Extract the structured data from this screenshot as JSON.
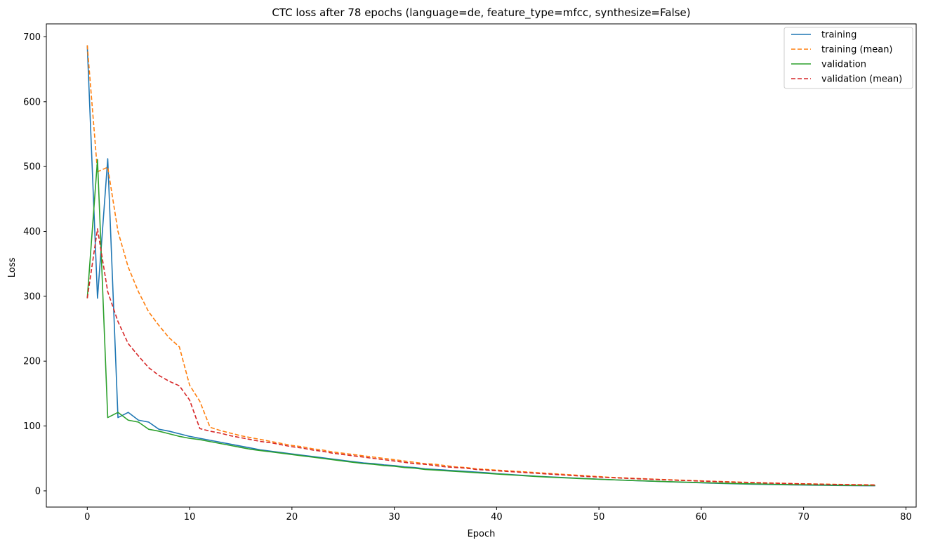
{
  "chart_data": {
    "type": "line",
    "title": "CTC loss after 78 epochs (language=de, feature_type=mfcc, synthesize=False)",
    "xlabel": "Epoch",
    "ylabel": "Loss",
    "xlim": [
      -4,
      81
    ],
    "ylim": [
      -25,
      720
    ],
    "xticks": [
      0,
      10,
      20,
      30,
      40,
      50,
      60,
      70,
      80
    ],
    "yticks": [
      0,
      100,
      200,
      300,
      400,
      500,
      600,
      700
    ],
    "grid": false,
    "legend_position": "upper right",
    "series": [
      {
        "name": "training",
        "color": "#1f77b4",
        "style": "solid",
        "x": [
          0,
          1,
          2,
          3,
          4,
          5,
          6,
          7,
          8,
          9,
          10,
          11,
          12,
          13,
          14,
          15,
          16,
          17,
          18,
          19,
          20,
          21,
          22,
          23,
          24,
          25,
          26,
          27,
          28,
          29,
          30,
          31,
          32,
          33,
          34,
          35,
          36,
          37,
          38,
          39,
          40,
          41,
          42,
          43,
          44,
          45,
          46,
          47,
          48,
          49,
          50,
          51,
          52,
          53,
          54,
          55,
          56,
          57,
          58,
          59,
          60,
          61,
          62,
          63,
          64,
          65,
          66,
          67,
          68,
          69,
          70,
          71,
          72,
          73,
          74,
          75,
          76,
          77
        ],
        "y": [
          687,
          297,
          512,
          113,
          121,
          109,
          106,
          95,
          92,
          88,
          84,
          81,
          78,
          75,
          72,
          69,
          66,
          63,
          61,
          59,
          57,
          55,
          53,
          51,
          49,
          47,
          45,
          43,
          42,
          40,
          39,
          37,
          36,
          34,
          33,
          32,
          31,
          30,
          29,
          28,
          26.5,
          25.5,
          24.5,
          23.5,
          22.5,
          21.7,
          21,
          20.2,
          19.5,
          18.8,
          18,
          17.3,
          16.7,
          16.1,
          15.5,
          15,
          14.4,
          13.9,
          13.4,
          12.9,
          12.4,
          11.9,
          11.5,
          11.1,
          10.7,
          10.3,
          10,
          9.7,
          9.4,
          9.2,
          9,
          8.8,
          8.6,
          8.4,
          8.2,
          8.1,
          8,
          7.9
        ]
      },
      {
        "name": "training (mean)",
        "color": "#ff7f0e",
        "style": "dashed",
        "x": [
          0,
          1,
          2,
          3,
          4,
          5,
          6,
          7,
          8,
          9,
          10,
          11,
          12,
          13,
          14,
          15,
          16,
          17,
          18,
          19,
          20,
          21,
          22,
          23,
          24,
          25,
          26,
          27,
          28,
          29,
          30,
          31,
          32,
          33,
          34,
          35,
          36,
          37,
          38,
          39,
          40,
          41,
          42,
          43,
          44,
          45,
          46,
          47,
          48,
          49,
          50,
          51,
          52,
          53,
          54,
          55,
          56,
          57,
          58,
          59,
          60,
          61,
          62,
          63,
          64,
          65,
          66,
          67,
          68,
          69,
          70,
          71,
          72,
          73,
          74,
          75,
          76,
          77
        ],
        "y": [
          687,
          492,
          499,
          400,
          345,
          307,
          276,
          255,
          236,
          222,
          163,
          138,
          98,
          93,
          89,
          85,
          82,
          79,
          76,
          73,
          70,
          68,
          65,
          63,
          60,
          58,
          56,
          54,
          52,
          50,
          48,
          46,
          44,
          42,
          41,
          39,
          37,
          36,
          34,
          33,
          32,
          31,
          30,
          29,
          28,
          27,
          26,
          25,
          24,
          23,
          22,
          21,
          20.3,
          19.6,
          19,
          18.3,
          17.7,
          17.1,
          16.5,
          16,
          15.4,
          14.9,
          14.4,
          13.9,
          13.4,
          12.9,
          12.5,
          12.1,
          11.7,
          11.3,
          11,
          10.7,
          10.4,
          10.1,
          9.8,
          9.6,
          9.4,
          9.2
        ]
      },
      {
        "name": "validation",
        "color": "#2ca02c",
        "style": "solid",
        "x": [
          0,
          1,
          2,
          3,
          4,
          5,
          6,
          7,
          8,
          9,
          10,
          11,
          12,
          13,
          14,
          15,
          16,
          17,
          18,
          19,
          20,
          21,
          22,
          23,
          24,
          25,
          26,
          27,
          28,
          29,
          30,
          31,
          32,
          33,
          34,
          35,
          36,
          37,
          38,
          39,
          40,
          41,
          42,
          43,
          44,
          45,
          46,
          47,
          48,
          49,
          50,
          51,
          52,
          53,
          54,
          55,
          56,
          57,
          58,
          59,
          60,
          61,
          62,
          63,
          64,
          65,
          66,
          67,
          68,
          69,
          70,
          71,
          72,
          73,
          74,
          75,
          76,
          77
        ],
        "y": [
          297,
          511,
          113,
          121,
          109,
          106,
          95,
          92,
          88,
          84,
          81,
          79,
          76,
          73,
          70,
          67,
          64,
          62,
          60,
          58,
          56,
          54,
          52,
          50,
          48,
          46,
          44,
          42,
          41,
          39,
          38,
          36,
          35,
          33,
          32,
          31,
          30,
          29,
          28,
          27,
          26,
          25,
          24,
          23,
          22,
          21.2,
          20.5,
          19.8,
          19.1,
          18.5,
          17.9,
          17.3,
          16.7,
          16.1,
          15.6,
          15.1,
          14.6,
          14.1,
          13.6,
          13.1,
          12.7,
          12.3,
          11.9,
          11.5,
          11.1,
          10.8,
          10.5,
          10.2,
          9.9,
          9.6,
          9.4,
          9.2,
          9,
          8.8,
          8.6,
          8.4,
          8.3,
          8.2
        ]
      },
      {
        "name": "validation (mean)",
        "color": "#d62728",
        "style": "dashed",
        "x": [
          0,
          1,
          2,
          3,
          4,
          5,
          6,
          7,
          8,
          9,
          10,
          11,
          12,
          13,
          14,
          15,
          16,
          17,
          18,
          19,
          20,
          21,
          22,
          23,
          24,
          25,
          26,
          27,
          28,
          29,
          30,
          31,
          32,
          33,
          34,
          35,
          36,
          37,
          38,
          39,
          40,
          41,
          42,
          43,
          44,
          45,
          46,
          47,
          48,
          49,
          50,
          51,
          52,
          53,
          54,
          55,
          56,
          57,
          58,
          59,
          60,
          61,
          62,
          63,
          64,
          65,
          66,
          67,
          68,
          69,
          70,
          71,
          72,
          73,
          74,
          75,
          76,
          77
        ],
        "y": [
          297,
          404,
          307,
          261,
          227,
          208,
          190,
          178,
          169,
          162,
          140,
          96,
          92,
          89,
          85,
          82,
          79,
          76,
          74,
          71,
          68,
          66,
          63,
          61,
          58,
          56,
          54,
          52,
          50,
          48,
          46,
          44,
          42,
          41,
          39,
          37,
          36,
          35,
          33,
          32,
          31,
          30,
          29,
          28,
          27,
          26,
          25,
          24,
          23,
          22,
          21.2,
          20.5,
          19.8,
          19.1,
          18.5,
          17.9,
          17.3,
          16.7,
          16.1,
          15.6,
          15,
          14.5,
          14,
          13.5,
          13,
          12.6,
          12.2,
          11.8,
          11.4,
          11,
          10.7,
          10.4,
          10.1,
          9.8,
          9.5,
          9.3,
          9.1,
          8.9
        ]
      }
    ]
  }
}
